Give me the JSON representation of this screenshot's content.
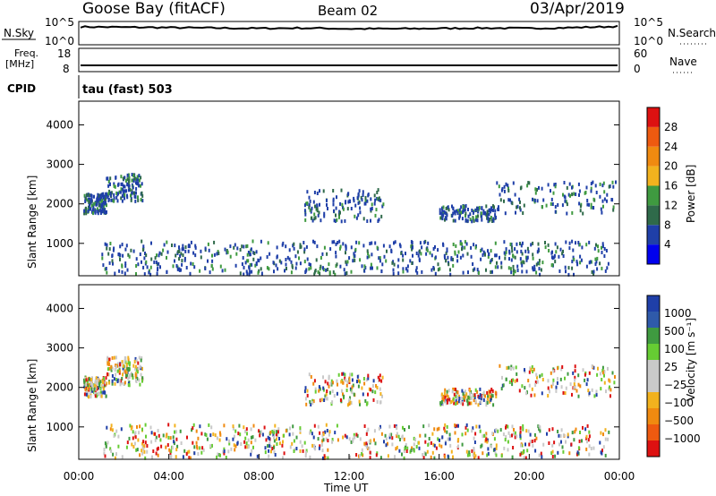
{
  "header": {
    "station": "Goose Bay (fitACF)",
    "beam": "Beam 02",
    "date": "03/Apr/2019"
  },
  "top_panels": {
    "noise": {
      "left_label": "N.Sky",
      "right_label": "N.Search",
      "left_ticks": [
        "10^5",
        "10^0"
      ],
      "right_ticks": [
        "10^5",
        "10^0"
      ]
    },
    "freq": {
      "left_label_line1": "Freq.",
      "left_label_line2": "[MHz]",
      "right_label": "Nave",
      "left_ticks": [
        "18",
        "8"
      ],
      "right_ticks": [
        "60",
        "0"
      ]
    },
    "cpid": {
      "label": "CPID",
      "value": "tau (fast) 503"
    }
  },
  "colors": {
    "power_scale": [
      "#0000ee",
      "#1f3fa8",
      "#2f6a4a",
      "#3f9a40",
      "#f2b21e",
      "#f08a10",
      "#ee5a10",
      "#dd1111"
    ],
    "velocity_scale": [
      "#1f3fa8",
      "#2f5aaa",
      "#3f9a40",
      "#66cc33",
      "#c9c9c9",
      "#c9c9c9",
      "#f2b21e",
      "#f08a10",
      "#ee5a10",
      "#dd1111"
    ]
  },
  "chart_data": [
    {
      "type": "line",
      "title": "",
      "xlabel": "",
      "ylabel": "N.Sky",
      "log_scale": true,
      "ylim": [
        "10^0",
        "10^5"
      ],
      "series": [
        {
          "name": "N.Sky",
          "note": "",
          "x": [
            "00:00",
            "02:00",
            "04:00",
            "06:00",
            "08:00",
            "10:00",
            "12:00",
            "14:00",
            "16:00",
            "18:00",
            "20:00",
            "22:00",
            "00:00"
          ],
          "values_log10": [
            4.1,
            4.0,
            3.9,
            3.8,
            3.7,
            3.8,
            3.6,
            3.6,
            3.7,
            3.8,
            3.7,
            3.9,
            4.2
          ]
        }
      ]
    },
    {
      "type": "line",
      "title": "",
      "xlabel": "",
      "ylabel": "Freq. [MHz]",
      "ylim": [
        8,
        18
      ],
      "series": [
        {
          "name": "Freq.",
          "x": [
            "00:00",
            "24:00"
          ],
          "values": [
            10.5,
            10.5
          ]
        }
      ]
    },
    {
      "type": "heatmap",
      "title": "",
      "xlabel": "",
      "ylabel": "Slant Range [km]",
      "yticks": [
        "1000",
        "2000",
        "3000",
        "4000"
      ],
      "ylim": [
        180,
        4600
      ],
      "x_range_hours": [
        0,
        24
      ],
      "colorbar_label": "Power [dB]",
      "colorbar_ticks": [
        "4",
        "8",
        "12",
        "16",
        "20",
        "24",
        "28"
      ],
      "bands": [
        {
          "start_h": 0.2,
          "end_h": 1.2,
          "range_low_km": 1800,
          "range_high_km": 2300
        },
        {
          "start_h": 1.2,
          "end_h": 2.8,
          "range_low_km": 2100,
          "range_high_km": 2800
        },
        {
          "start_h": 10.0,
          "end_h": 13.5,
          "range_low_km": 1600,
          "range_high_km": 2400
        },
        {
          "start_h": 16.0,
          "end_h": 18.5,
          "range_low_km": 1600,
          "range_high_km": 2000
        },
        {
          "start_h": 18.5,
          "end_h": 23.8,
          "range_low_km": 1800,
          "range_high_km": 2600
        },
        {
          "start_h": 1.0,
          "end_h": 23.5,
          "range_low_km": 250,
          "range_high_km": 1100
        }
      ]
    },
    {
      "type": "heatmap",
      "title": "",
      "xlabel": "Time UT",
      "ylabel": "Slant Range [km]",
      "yticks": [
        "1000",
        "2000",
        "3000",
        "4000"
      ],
      "xticks": [
        "00:00",
        "04:00",
        "08:00",
        "12:00",
        "16:00",
        "20:00",
        "00:00"
      ],
      "ylim": [
        180,
        4600
      ],
      "x_range_hours": [
        0,
        24
      ],
      "colorbar_label": "Velocity [m s⁻¹]",
      "colorbar_ticks": [
        "1000",
        "500",
        "100",
        "25",
        "−25",
        "−100",
        "−500",
        "−1000"
      ]
    }
  ]
}
